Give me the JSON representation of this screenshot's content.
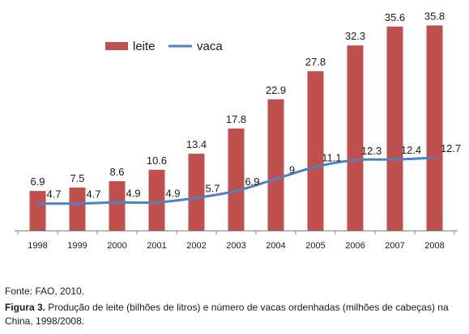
{
  "chart_data": {
    "type": "bar",
    "categories": [
      "1998",
      "1999",
      "2000",
      "2001",
      "2002",
      "2003",
      "2004",
      "2005",
      "2006",
      "2007",
      "2008"
    ],
    "series": [
      {
        "name": "leite",
        "type": "bar",
        "color": "#C0504D",
        "values": [
          6.9,
          7.5,
          8.6,
          10.6,
          13.4,
          17.8,
          22.9,
          27.8,
          32.3,
          35.6,
          35.8
        ]
      },
      {
        "name": "vaca",
        "type": "line",
        "color": "#4F81BD",
        "values": [
          4.7,
          4.7,
          4.9,
          4.9,
          5.7,
          6.9,
          9,
          11.1,
          12.3,
          12.4,
          12.7
        ]
      }
    ],
    "ylim": [
      0,
      36
    ],
    "grid": false,
    "legend_position": "top-left"
  },
  "caption": {
    "source": "Fonte: FAO, 2010.",
    "figure_label": "Figura 3.",
    "figure_text": " Produção de leite (bilhões de litros) e número de vacas ordenhadas (milhões de cabeças) na China, 1998/2008."
  }
}
